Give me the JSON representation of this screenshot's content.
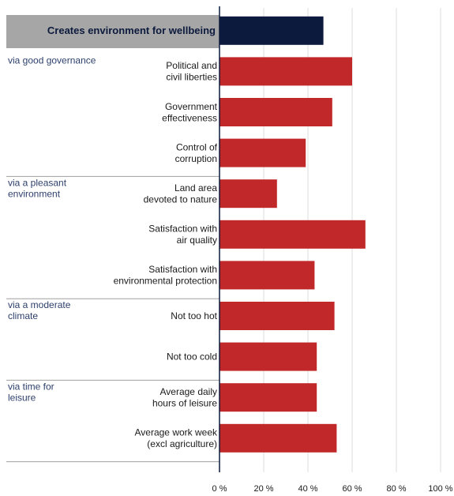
{
  "chart_data": {
    "type": "bar",
    "orientation": "horizontal",
    "title": "",
    "xlabel": "",
    "ylabel": "",
    "xlim": [
      0,
      100
    ],
    "grid": true,
    "categories": [
      "Creates environment for wellbeing",
      "Political and civil liberties",
      "Government effectiveness",
      "Control of corruption",
      "Land area devoted to nature",
      "Satisfaction with air quality",
      "Satisfaction with environmental protection",
      "Not too hot",
      "Not too cold",
      "Average daily hours of leisure",
      "Average work week (excl agriculture)"
    ],
    "label_lines": [
      [
        "Creates environment for wellbeing"
      ],
      [
        "Political and",
        "civil liberties"
      ],
      [
        "Government",
        "effectiveness"
      ],
      [
        "Control of",
        "corruption"
      ],
      [
        "Land area",
        "devoted to nature"
      ],
      [
        "Satisfaction with",
        "air quality"
      ],
      [
        "Satisfaction with",
        "environmental protection"
      ],
      [
        "Not too hot"
      ],
      [
        "Not too cold"
      ],
      [
        "Average daily",
        "hours of leisure"
      ],
      [
        "Average work week",
        "(excl agriculture)"
      ]
    ],
    "values": [
      47,
      60,
      51,
      39,
      26,
      66,
      43,
      52,
      44,
      44,
      53
    ],
    "highlight_index": 0,
    "groups": [
      {
        "lines": [
          "via good governance"
        ],
        "start": 1,
        "end": 3
      },
      {
        "lines": [
          "via a pleasant",
          "environment"
        ],
        "start": 4,
        "end": 6
      },
      {
        "lines": [
          "via a moderate",
          "climate"
        ],
        "start": 7,
        "end": 8
      },
      {
        "lines": [
          "via time for",
          "leisure"
        ],
        "start": 9,
        "end": 10
      }
    ],
    "x_ticks": [
      0,
      20,
      40,
      60,
      80,
      100
    ],
    "x_tick_labels": [
      "0 %",
      "20 %",
      "40 %",
      "60 %",
      "80 %",
      "100 %"
    ]
  },
  "colors": {
    "bar": "#c0282a",
    "highlight_bar": "#0c1a3d",
    "header_band": "#a6a6a6",
    "grid": "#dcdcdc",
    "axis": "#0c1a3d",
    "separator": "#a0a0a0",
    "group_text": "#2c3f6b"
  }
}
